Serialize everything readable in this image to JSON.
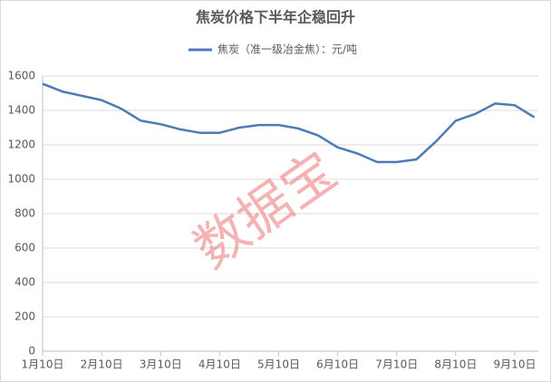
{
  "chart_data": {
    "type": "line",
    "title": "焦炭价格下半年企稳回升",
    "watermark": "数据宝",
    "categories": [
      "1月10日",
      null,
      null,
      "2月10日",
      null,
      null,
      "3月10日",
      null,
      null,
      "4月10日",
      null,
      null,
      "5月10日",
      null,
      null,
      "6月10日",
      null,
      null,
      "7月10日",
      null,
      null,
      "8月10日",
      null,
      null,
      "9月10日",
      null
    ],
    "series": [
      {
        "name": "焦炭（准一级冶金焦）：元/吨",
        "color": "#4e7ab5",
        "values": [
          1555,
          1510,
          1485,
          1460,
          1410,
          1340,
          1320,
          1290,
          1270,
          1270,
          1300,
          1315,
          1315,
          1295,
          1255,
          1185,
          1150,
          1100,
          1100,
          1115,
          1220,
          1340,
          1380,
          1440,
          1430,
          1360
        ]
      }
    ],
    "ylim": [
      0,
      1600
    ],
    "yticks": [
      0,
      200,
      400,
      600,
      800,
      1000,
      1200,
      1400,
      1600
    ],
    "grid": true
  }
}
